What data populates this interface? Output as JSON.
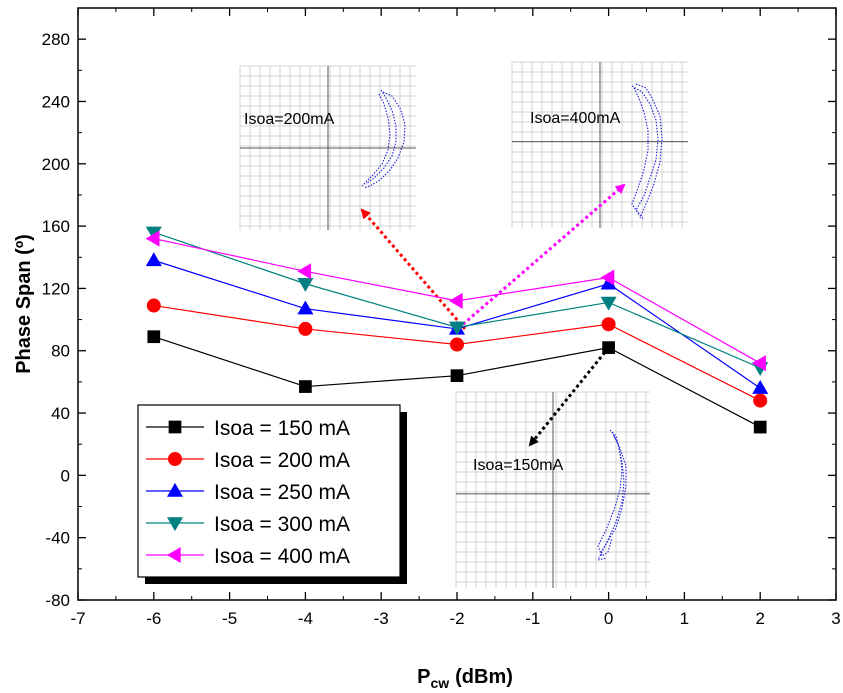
{
  "chart_data": {
    "type": "line",
    "xlabel": "P",
    "xlabel_sub": "cw",
    "xlabel_unit": "(dBm)",
    "ylabel": "Phase Span (º)",
    "xlim": [
      -7,
      3
    ],
    "ylim": [
      -80,
      300
    ],
    "xticks": [
      -7,
      -6,
      -5,
      -4,
      -3,
      -2,
      -1,
      0,
      1,
      2,
      3
    ],
    "yticks": [
      -80,
      -40,
      0,
      40,
      80,
      120,
      160,
      200,
      240,
      280
    ],
    "x": [
      -6,
      -4,
      -2,
      0,
      2
    ],
    "series": [
      {
        "name": "Isoa = 150 mA",
        "color": "#000000",
        "marker": "square",
        "values": [
          89,
          57,
          64,
          82,
          31
        ]
      },
      {
        "name": "Isoa = 200 mA",
        "color": "#ff0000",
        "marker": "circle",
        "values": [
          109,
          94,
          84,
          97,
          48
        ]
      },
      {
        "name": "Isoa = 250 mA",
        "color": "#0000ff",
        "marker": "triangle-up",
        "values": [
          138,
          107,
          94,
          123,
          56
        ]
      },
      {
        "name": "Isoa = 300 mA",
        "color": "#008080",
        "marker": "triangle-down",
        "values": [
          156,
          123,
          95,
          111,
          69
        ]
      },
      {
        "name": "Isoa = 400 mA",
        "color": "#ff00ff",
        "marker": "triangle-left",
        "values": [
          152,
          131,
          112,
          127,
          72
        ]
      }
    ],
    "legend_position": "bottom-left",
    "grid": false,
    "insets": [
      {
        "label": "Isoa=200mA",
        "points_to_x": -2,
        "arrow_color": "#ff0000"
      },
      {
        "label": "Isoa=400mA",
        "points_to_x": -2,
        "arrow_color": "#ff00ff"
      },
      {
        "label": "Isoa=150mA",
        "points_to_x": 0,
        "arrow_color": "#000000"
      }
    ]
  }
}
